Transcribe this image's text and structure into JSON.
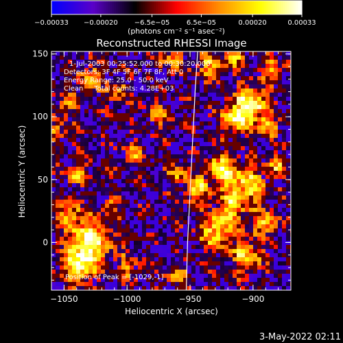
{
  "chart_data": {
    "type": "heatmap",
    "title": "Reconstructed RHESSI Image",
    "xlabel": "Heliocentric X (arcsec)",
    "ylabel": "Heliocentric Y (arcsec)",
    "xlim": [
      -1060,
      -870
    ],
    "ylim": [
      -38,
      152
    ],
    "x_ticks": [
      -1050,
      -1000,
      -950,
      -900
    ],
    "x_tick_labels": [
      "−1050",
      "−1000",
      "−950",
      "−900"
    ],
    "y_ticks": [
      0,
      50,
      100,
      150
    ],
    "y_tick_labels": [
      "0",
      "50",
      "100",
      "150"
    ],
    "colorbar": {
      "range": [
        -0.00033,
        0.00033
      ],
      "ticks": [
        -0.00033,
        -0.0002,
        -6.5e-05,
        6.5e-05,
        0.0002,
        0.00033
      ],
      "tick_labels": [
        "−0.00033",
        "−0.00020",
        "−6.5e−05",
        "6.5e−05",
        "0.00020",
        "0.00033"
      ],
      "units": "(photons cm⁻² s⁻¹ asec⁻²)",
      "colormap": [
        "#0000ff",
        "#5a00c8",
        "#000000",
        "#ff0000",
        "#ff8c00",
        "#ffff00",
        "#ffffff"
      ]
    },
    "annotations": [
      "1-Jul-2003 00:25:52.000 to 00:30:20.000",
      "Detectors: 3F 4F 5F 6F 7F 8F, Att 0",
      "Energy Range: 25.0 - 50.0 keV",
      "Clean     Total counts: 4.28E+03"
    ],
    "peak_label": "Position of Peak = [-1029,-1]",
    "peak": [
      -1029,
      -1
    ],
    "limb_curve": [
      [
        -944,
        152
      ],
      [
        -946,
        120
      ],
      [
        -948,
        80
      ],
      [
        -950,
        40
      ],
      [
        -952,
        0
      ],
      [
        -953,
        -38
      ]
    ]
  },
  "footer": {
    "date": "3-May-2022 02:11"
  }
}
